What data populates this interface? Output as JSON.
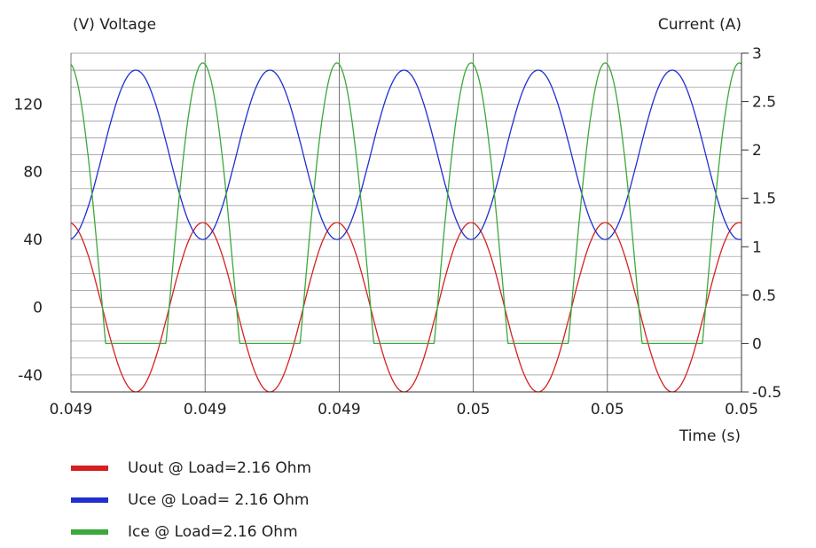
{
  "chart_data": {
    "type": "line",
    "left_axis_label": "(V)  Voltage",
    "right_axis_label": "Current  (A)",
    "xlabel": "Time  (s)",
    "x_tick_labels": [
      "0.049",
      "0.049",
      "0.049",
      "0.05",
      "0.05",
      "0.05"
    ],
    "y_left_ticks": [
      -40,
      0,
      40,
      80,
      120
    ],
    "y_left_range": [
      -50,
      150
    ],
    "y_right_ticks": [
      "-0.5",
      "0",
      "0.5",
      "1",
      "1.5",
      "2",
      "2.5",
      "3"
    ],
    "y_right_range": [
      -0.5,
      3
    ],
    "x_range": [
      0.049,
      0.0505
    ],
    "grid": true,
    "legend_position": "bottom-left",
    "series": [
      {
        "name": "Uout @ Load=2.16 Ohm",
        "color": "#d62020",
        "axis": "left",
        "shape": "sine",
        "mean": 0,
        "amplitude": 50,
        "period": 0.0003,
        "phase_peak_x": 0.049295
      },
      {
        "name": "Uce @ Load= 2.16 Ohm",
        "color": "#1f2fd0",
        "axis": "left",
        "shape": "sine",
        "mean": 90,
        "amplitude": 50,
        "period": 0.0003,
        "phase_peak_x": 0.049145
      },
      {
        "name": "Ice @ Load=2.16 Ohm",
        "color": "#3aa83a",
        "axis": "right",
        "shape": "clipped-sine",
        "baseline": 0,
        "peak": 2.9,
        "period": 0.0003,
        "phase_peak_x": 0.049295,
        "on_fraction": 0.55
      }
    ]
  }
}
